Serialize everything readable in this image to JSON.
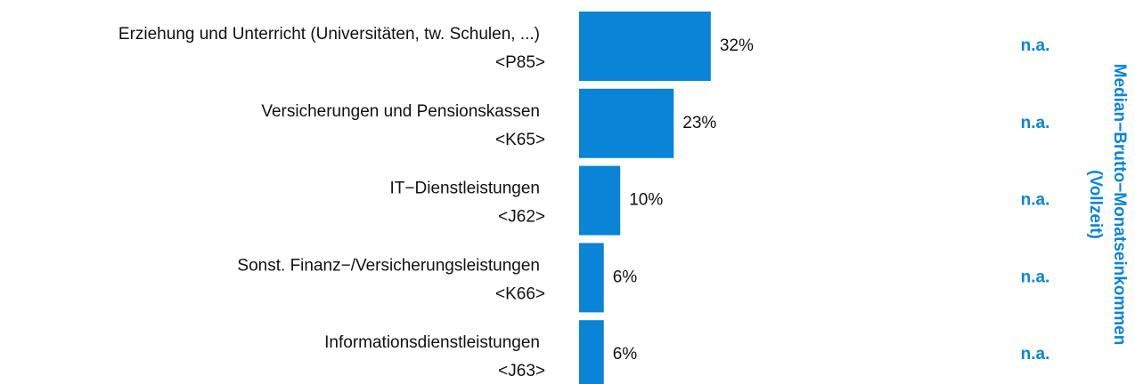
{
  "chart_data": {
    "type": "bar",
    "orientation": "horizontal",
    "categories": [
      "Erziehung und Unterricht (Universitäten, tw. Schulen, ...)",
      "Versicherungen und Pensionskassen",
      "IT−Dienstleistungen",
      "Sonst. Finanz−/Versicherungsleistungen",
      "Informationsdienstleistungen"
    ],
    "codes": [
      "<P85>",
      "<K65>",
      "<J62>",
      "<K66>",
      "<J63>"
    ],
    "values": [
      32,
      23,
      10,
      6,
      6
    ],
    "value_labels": [
      "32%",
      "23%",
      "10%",
      "6%",
      "6%"
    ],
    "color": "#0a84d6",
    "side_values": [
      "n.a.",
      "n.a.",
      "n.a.",
      "n.a.",
      "n.a."
    ],
    "side_label": [
      "Median−Brutto−Monatseinkommen",
      "(Vollzeit)"
    ]
  }
}
